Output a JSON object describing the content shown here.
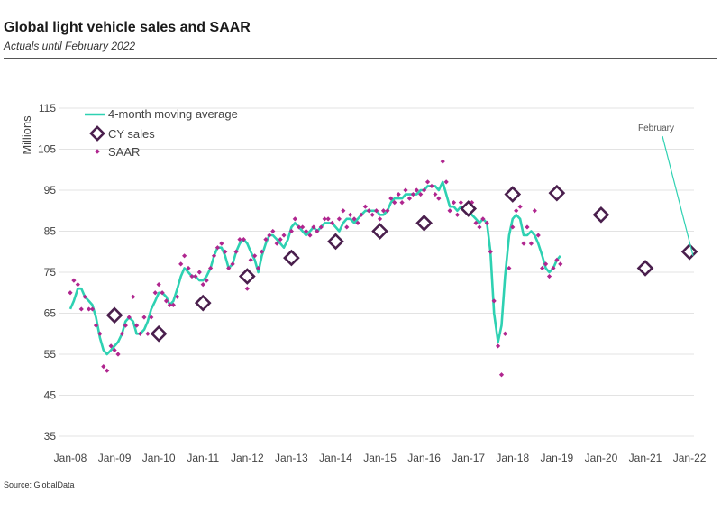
{
  "header": {
    "title": "Global light vehicle sales and SAAR",
    "subtitle": "Actuals until February 2022"
  },
  "footer": {
    "source": "Source: GlobalData"
  },
  "colors": {
    "line": "#2ed1b2",
    "cy": "#4a1f4d",
    "saar": "#b0268f",
    "grid": "#e3e3e3",
    "rule": "#555555"
  },
  "chart_data": {
    "type": "line",
    "title": "Global light vehicle sales and SAAR",
    "subtitle": "Actuals until February 2022",
    "ylabel": "Millions",
    "xlabel": "",
    "ylim": [
      35,
      115
    ],
    "yticks": [
      35,
      45,
      55,
      65,
      75,
      85,
      95,
      105,
      115
    ],
    "xlim": [
      2008.0,
      2022.1
    ],
    "xticks": [
      {
        "label": "Jan-08",
        "x": 2008
      },
      {
        "label": "Jan-09",
        "x": 2009
      },
      {
        "label": "Jan-10",
        "x": 2010
      },
      {
        "label": "Jan-11",
        "x": 2011
      },
      {
        "label": "Jan-12",
        "x": 2012
      },
      {
        "label": "Jan-13",
        "x": 2013
      },
      {
        "label": "Jan-14",
        "x": 2014
      },
      {
        "label": "Jan-15",
        "x": 2015
      },
      {
        "label": "Jan-16",
        "x": 2016
      },
      {
        "label": "Jan-17",
        "x": 2017
      },
      {
        "label": "Jan-18",
        "x": 2018
      },
      {
        "label": "Jan-19",
        "x": 2019
      },
      {
        "label": "Jan-20",
        "x": 2020
      },
      {
        "label": "Jan-21",
        "x": 2021
      },
      {
        "label": "Jan-22",
        "x": 2022
      }
    ],
    "grid": "horizontal",
    "legend": {
      "position": "top-left"
    },
    "annotation": {
      "text": "February",
      "x": 2022.08,
      "y": 79
    },
    "series": [
      {
        "name": "4-month moving average",
        "kind": "line",
        "points": [
          [
            2008.0,
            66
          ],
          [
            2008.08,
            68
          ],
          [
            2008.17,
            71
          ],
          [
            2008.25,
            71
          ],
          [
            2008.33,
            69
          ],
          [
            2008.42,
            68
          ],
          [
            2008.5,
            67
          ],
          [
            2008.58,
            64
          ],
          [
            2008.67,
            59
          ],
          [
            2008.75,
            56
          ],
          [
            2008.83,
            55
          ],
          [
            2008.92,
            56
          ],
          [
            2009.0,
            57
          ],
          [
            2009.08,
            58
          ],
          [
            2009.17,
            60
          ],
          [
            2009.25,
            63
          ],
          [
            2009.33,
            64
          ],
          [
            2009.42,
            63
          ],
          [
            2009.5,
            60
          ],
          [
            2009.58,
            60
          ],
          [
            2009.67,
            61
          ],
          [
            2009.75,
            63
          ],
          [
            2009.83,
            66
          ],
          [
            2009.92,
            68
          ],
          [
            2010.0,
            70
          ],
          [
            2010.08,
            70
          ],
          [
            2010.17,
            69
          ],
          [
            2010.25,
            67
          ],
          [
            2010.33,
            68
          ],
          [
            2010.42,
            71
          ],
          [
            2010.5,
            74
          ],
          [
            2010.58,
            76
          ],
          [
            2010.67,
            75
          ],
          [
            2010.75,
            74
          ],
          [
            2010.83,
            74
          ],
          [
            2010.92,
            73
          ],
          [
            2011.0,
            73
          ],
          [
            2011.08,
            74
          ],
          [
            2011.17,
            76
          ],
          [
            2011.25,
            79
          ],
          [
            2011.33,
            81
          ],
          [
            2011.42,
            81
          ],
          [
            2011.5,
            79
          ],
          [
            2011.58,
            76
          ],
          [
            2011.67,
            77
          ],
          [
            2011.75,
            80
          ],
          [
            2011.83,
            82
          ],
          [
            2011.92,
            83
          ],
          [
            2012.0,
            82
          ],
          [
            2012.08,
            80
          ],
          [
            2012.17,
            78
          ],
          [
            2012.25,
            75
          ],
          [
            2012.33,
            79
          ],
          [
            2012.42,
            82
          ],
          [
            2012.5,
            84
          ],
          [
            2012.58,
            84
          ],
          [
            2012.67,
            83
          ],
          [
            2012.75,
            82
          ],
          [
            2012.83,
            81
          ],
          [
            2012.92,
            83
          ],
          [
            2013.0,
            86
          ],
          [
            2013.08,
            87
          ],
          [
            2013.17,
            86
          ],
          [
            2013.25,
            85
          ],
          [
            2013.33,
            84
          ],
          [
            2013.42,
            85
          ],
          [
            2013.5,
            86
          ],
          [
            2013.58,
            85
          ],
          [
            2013.67,
            86
          ],
          [
            2013.75,
            87
          ],
          [
            2013.83,
            87
          ],
          [
            2013.92,
            87
          ],
          [
            2014.0,
            86
          ],
          [
            2014.08,
            85
          ],
          [
            2014.17,
            87
          ],
          [
            2014.25,
            88
          ],
          [
            2014.33,
            88
          ],
          [
            2014.42,
            87
          ],
          [
            2014.5,
            88
          ],
          [
            2014.58,
            89
          ],
          [
            2014.67,
            90
          ],
          [
            2014.75,
            90
          ],
          [
            2014.83,
            90
          ],
          [
            2014.92,
            90
          ],
          [
            2015.0,
            89
          ],
          [
            2015.08,
            89
          ],
          [
            2015.17,
            90
          ],
          [
            2015.25,
            92
          ],
          [
            2015.33,
            93
          ],
          [
            2015.42,
            93
          ],
          [
            2015.5,
            93
          ],
          [
            2015.58,
            94
          ],
          [
            2015.67,
            94
          ],
          [
            2015.75,
            94
          ],
          [
            2015.83,
            94
          ],
          [
            2015.92,
            95
          ],
          [
            2016.0,
            95
          ],
          [
            2016.08,
            96
          ],
          [
            2016.17,
            96
          ],
          [
            2016.25,
            96
          ],
          [
            2016.33,
            95
          ],
          [
            2016.42,
            97
          ],
          [
            2016.5,
            94
          ],
          [
            2016.58,
            91
          ],
          [
            2016.67,
            91
          ],
          [
            2016.75,
            90
          ],
          [
            2016.83,
            91
          ],
          [
            2016.92,
            90
          ],
          [
            2017.0,
            90
          ],
          [
            2017.08,
            89
          ],
          [
            2017.17,
            88
          ],
          [
            2017.25,
            87
          ],
          [
            2017.33,
            88
          ],
          [
            2017.42,
            87
          ],
          [
            2017.5,
            80
          ],
          [
            2017.58,
            65
          ],
          [
            2017.67,
            58
          ],
          [
            2017.75,
            62
          ],
          [
            2017.83,
            74
          ],
          [
            2017.92,
            84
          ],
          [
            2018.0,
            88
          ],
          [
            2018.08,
            89
          ],
          [
            2018.17,
            88
          ],
          [
            2018.25,
            84
          ],
          [
            2018.33,
            84
          ],
          [
            2018.42,
            85
          ],
          [
            2018.5,
            84
          ],
          [
            2018.58,
            82
          ],
          [
            2018.67,
            79
          ],
          [
            2018.75,
            76
          ],
          [
            2018.83,
            75
          ],
          [
            2018.92,
            76
          ],
          [
            2019.0,
            78
          ],
          [
            2019.08,
            79
          ]
        ]
      },
      {
        "name": "CY sales",
        "kind": "diamond",
        "points": [
          [
            2009.0,
            64.5
          ],
          [
            2010.0,
            60
          ],
          [
            2011.0,
            67.5
          ],
          [
            2012.0,
            74
          ],
          [
            2013.0,
            78.5
          ],
          [
            2014.0,
            82.5
          ],
          [
            2015.0,
            85
          ],
          [
            2016.0,
            87
          ],
          [
            2017.0,
            90.5
          ],
          [
            2018.0,
            94
          ],
          [
            2019.0,
            94.3
          ],
          [
            2020.0,
            89
          ],
          [
            2021.0,
            76
          ],
          [
            2022.0,
            80
          ]
        ]
      },
      {
        "name": "SAAR",
        "kind": "points",
        "points": [
          [
            2008.0,
            70
          ],
          [
            2008.08,
            73
          ],
          [
            2008.17,
            72
          ],
          [
            2008.25,
            66
          ],
          [
            2008.33,
            69
          ],
          [
            2008.42,
            66
          ],
          [
            2008.5,
            66
          ],
          [
            2008.58,
            62
          ],
          [
            2008.67,
            60
          ],
          [
            2008.75,
            52
          ],
          [
            2008.83,
            51
          ],
          [
            2008.92,
            57
          ],
          [
            2009.0,
            56
          ],
          [
            2009.08,
            55
          ],
          [
            2009.17,
            60
          ],
          [
            2009.25,
            62
          ],
          [
            2009.33,
            64
          ],
          [
            2009.42,
            69
          ],
          [
            2009.5,
            62
          ],
          [
            2009.58,
            60
          ],
          [
            2009.67,
            64
          ],
          [
            2009.75,
            60
          ],
          [
            2009.83,
            64
          ],
          [
            2009.92,
            70
          ],
          [
            2010.0,
            72
          ],
          [
            2010.08,
            70
          ],
          [
            2010.17,
            68
          ],
          [
            2010.25,
            67
          ],
          [
            2010.33,
            67
          ],
          [
            2010.42,
            69
          ],
          [
            2010.5,
            77
          ],
          [
            2010.58,
            79
          ],
          [
            2010.67,
            76
          ],
          [
            2010.75,
            74
          ],
          [
            2010.83,
            74
          ],
          [
            2010.92,
            75
          ],
          [
            2011.0,
            72
          ],
          [
            2011.08,
            73
          ],
          [
            2011.17,
            76
          ],
          [
            2011.25,
            79
          ],
          [
            2011.33,
            81
          ],
          [
            2011.42,
            82
          ],
          [
            2011.5,
            80
          ],
          [
            2011.58,
            76
          ],
          [
            2011.67,
            77
          ],
          [
            2011.75,
            80
          ],
          [
            2011.83,
            83
          ],
          [
            2011.92,
            83
          ],
          [
            2012.0,
            71
          ],
          [
            2012.08,
            78
          ],
          [
            2012.17,
            79
          ],
          [
            2012.25,
            76
          ],
          [
            2012.33,
            80
          ],
          [
            2012.42,
            83
          ],
          [
            2012.5,
            84
          ],
          [
            2012.58,
            85
          ],
          [
            2012.67,
            82
          ],
          [
            2012.75,
            83
          ],
          [
            2012.83,
            84
          ],
          [
            2012.92,
            78
          ],
          [
            2013.0,
            85
          ],
          [
            2013.08,
            88
          ],
          [
            2013.17,
            86
          ],
          [
            2013.25,
            86
          ],
          [
            2013.33,
            85
          ],
          [
            2013.42,
            84
          ],
          [
            2013.5,
            86
          ],
          [
            2013.58,
            85
          ],
          [
            2013.67,
            86
          ],
          [
            2013.75,
            88
          ],
          [
            2013.83,
            88
          ],
          [
            2013.92,
            87
          ],
          [
            2014.0,
            83
          ],
          [
            2014.08,
            88
          ],
          [
            2014.17,
            90
          ],
          [
            2014.25,
            86
          ],
          [
            2014.33,
            89
          ],
          [
            2014.42,
            88
          ],
          [
            2014.5,
            87
          ],
          [
            2014.58,
            89
          ],
          [
            2014.67,
            91
          ],
          [
            2014.75,
            90
          ],
          [
            2014.83,
            89
          ],
          [
            2014.92,
            90
          ],
          [
            2015.0,
            88
          ],
          [
            2015.08,
            90
          ],
          [
            2015.17,
            90
          ],
          [
            2015.25,
            93
          ],
          [
            2015.33,
            92
          ],
          [
            2015.42,
            94
          ],
          [
            2015.5,
            92
          ],
          [
            2015.58,
            95
          ],
          [
            2015.67,
            93
          ],
          [
            2015.75,
            94
          ],
          [
            2015.83,
            95
          ],
          [
            2015.92,
            94
          ],
          [
            2016.0,
            95
          ],
          [
            2016.08,
            97
          ],
          [
            2016.17,
            96
          ],
          [
            2016.25,
            94
          ],
          [
            2016.33,
            93
          ],
          [
            2016.42,
            102
          ],
          [
            2016.5,
            97
          ],
          [
            2016.58,
            90
          ],
          [
            2016.67,
            92
          ],
          [
            2016.75,
            89
          ],
          [
            2016.83,
            92
          ],
          [
            2016.92,
            90
          ],
          [
            2017.0,
            90
          ],
          [
            2017.08,
            92
          ],
          [
            2017.17,
            87
          ],
          [
            2017.25,
            86
          ],
          [
            2017.33,
            88
          ],
          [
            2017.42,
            87
          ],
          [
            2017.5,
            80
          ],
          [
            2017.58,
            68
          ],
          [
            2017.67,
            57
          ],
          [
            2017.75,
            50
          ],
          [
            2017.83,
            60
          ],
          [
            2017.92,
            76
          ],
          [
            2018.0,
            86
          ],
          [
            2018.08,
            90
          ],
          [
            2018.17,
            91
          ],
          [
            2018.25,
            82
          ],
          [
            2018.33,
            86
          ],
          [
            2018.42,
            82
          ],
          [
            2018.5,
            90
          ],
          [
            2018.58,
            84
          ],
          [
            2018.67,
            76
          ],
          [
            2018.75,
            77
          ],
          [
            2018.83,
            74
          ],
          [
            2018.92,
            76
          ],
          [
            2019.0,
            78
          ],
          [
            2019.08,
            77
          ]
        ]
      }
    ]
  }
}
